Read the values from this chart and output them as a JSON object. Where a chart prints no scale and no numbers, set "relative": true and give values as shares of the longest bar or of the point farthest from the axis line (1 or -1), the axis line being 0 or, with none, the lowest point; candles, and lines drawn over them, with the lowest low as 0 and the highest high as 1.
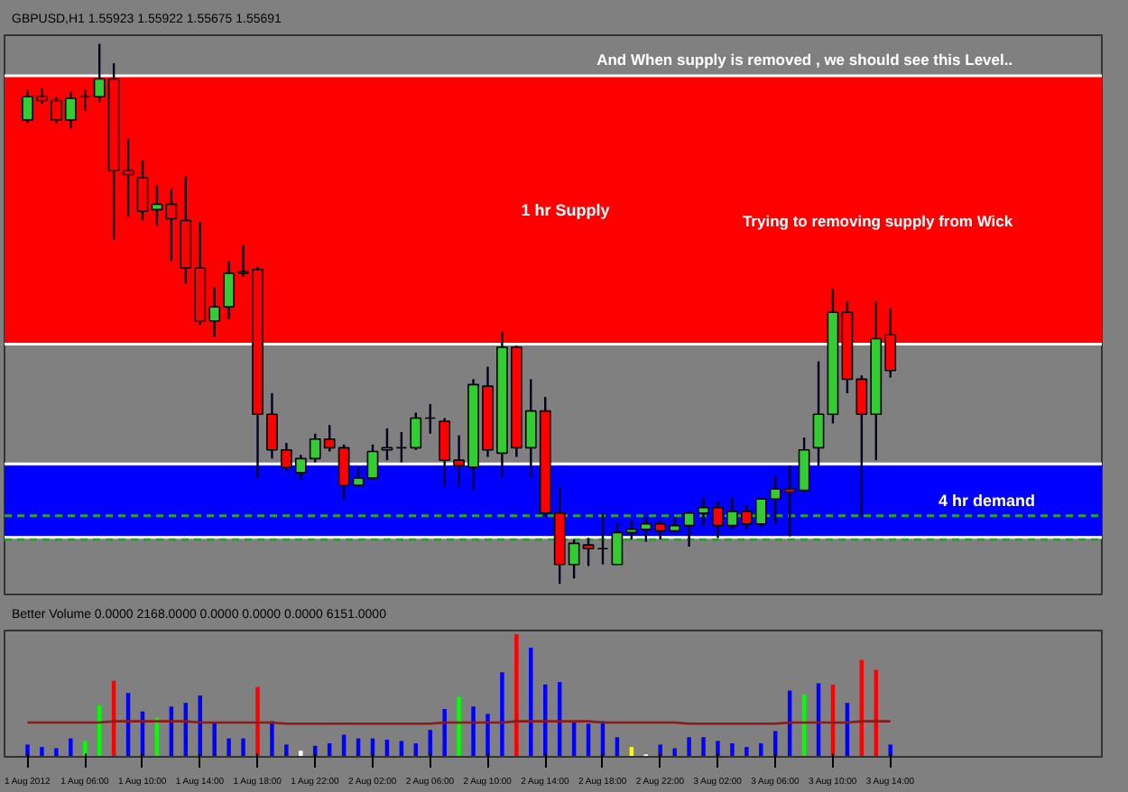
{
  "chart_data": [
    {
      "type": "candlestick",
      "title": "GBPUSD,H1 1.55923 1.55922 1.55675 1.55691",
      "relative": true,
      "tick_labels": false,
      "categories": [
        null,
        null,
        null,
        null,
        null,
        null,
        null,
        null,
        null,
        null,
        null,
        null,
        null,
        null,
        null,
        null,
        null,
        null,
        null,
        null,
        null,
        null,
        null,
        null,
        null,
        null,
        null,
        null,
        null,
        null,
        null,
        null,
        null,
        null,
        null,
        null,
        null,
        null,
        null,
        null,
        null,
        null,
        null,
        null,
        null,
        null,
        null,
        null,
        null,
        null,
        null,
        null,
        null,
        null,
        null,
        null,
        null,
        null,
        null,
        null,
        null
      ],
      "ohlc": [
        [
          0.859,
          0.915,
          0.853,
          0.902
        ],
        [
          0.902,
          0.918,
          0.889,
          0.895
        ],
        [
          0.895,
          0.902,
          0.853,
          0.859
        ],
        [
          0.859,
          0.912,
          0.843,
          0.899
        ],
        [
          0.902,
          0.915,
          0.876,
          0.902
        ],
        [
          0.902,
          1.0,
          0.892,
          0.935
        ],
        [
          0.935,
          0.964,
          0.637,
          0.765
        ],
        [
          0.765,
          0.824,
          0.68,
          0.758
        ],
        [
          0.752,
          0.784,
          0.673,
          0.69
        ],
        [
          0.693,
          0.739,
          0.663,
          0.703
        ],
        [
          0.703,
          0.732,
          0.598,
          0.676
        ],
        [
          0.673,
          0.755,
          0.556,
          0.585
        ],
        [
          0.585,
          0.67,
          0.48,
          0.487
        ],
        [
          0.487,
          0.549,
          0.458,
          0.513
        ],
        [
          0.513,
          0.598,
          0.49,
          0.575
        ],
        [
          0.575,
          0.627,
          0.569,
          0.578
        ],
        [
          0.582,
          0.588,
          0.196,
          0.314
        ],
        [
          0.314,
          0.353,
          0.232,
          0.248
        ],
        [
          0.248,
          0.261,
          0.209,
          0.216
        ],
        [
          0.206,
          0.239,
          0.193,
          0.232
        ],
        [
          0.232,
          0.278,
          0.225,
          0.268
        ],
        [
          0.268,
          0.294,
          0.245,
          0.252
        ],
        [
          0.252,
          0.258,
          0.157,
          0.183
        ],
        [
          0.183,
          0.216,
          0.18,
          0.196
        ],
        [
          0.196,
          0.258,
          0.193,
          0.245
        ],
        [
          0.248,
          0.288,
          0.229,
          0.252
        ],
        [
          0.252,
          0.281,
          0.225,
          0.252
        ],
        [
          0.252,
          0.317,
          0.248,
          0.307
        ],
        [
          0.307,
          0.333,
          0.278,
          0.307
        ],
        [
          0.301,
          0.307,
          0.18,
          0.229
        ],
        [
          0.229,
          0.275,
          0.18,
          0.219
        ],
        [
          0.216,
          0.379,
          0.173,
          0.369
        ],
        [
          0.366,
          0.402,
          0.235,
          0.248
        ],
        [
          0.242,
          0.467,
          0.196,
          0.438
        ],
        [
          0.438,
          0.441,
          0.235,
          0.252
        ],
        [
          0.252,
          0.379,
          0.196,
          0.32
        ],
        [
          0.32,
          0.346,
          0.124,
          0.131
        ],
        [
          0.131,
          0.18,
          0.0,
          0.036
        ],
        [
          0.036,
          0.082,
          0.01,
          0.075
        ],
        [
          0.072,
          0.085,
          0.033,
          0.065
        ],
        [
          0.065,
          0.131,
          0.036,
          0.065
        ],
        [
          0.036,
          0.114,
          0.036,
          0.095
        ],
        [
          0.095,
          0.118,
          0.082,
          0.101
        ],
        [
          0.101,
          0.124,
          0.078,
          0.111
        ],
        [
          0.111,
          0.118,
          0.082,
          0.098
        ],
        [
          0.098,
          0.124,
          0.095,
          0.108
        ],
        [
          0.108,
          0.134,
          0.069,
          0.131
        ],
        [
          0.131,
          0.16,
          0.108,
          0.141
        ],
        [
          0.141,
          0.154,
          0.085,
          0.108
        ],
        [
          0.108,
          0.16,
          0.101,
          0.134
        ],
        [
          0.134,
          0.147,
          0.101,
          0.111
        ],
        [
          0.111,
          0.16,
          0.105,
          0.157
        ],
        [
          0.157,
          0.199,
          0.111,
          0.176
        ],
        [
          0.176,
          0.219,
          0.088,
          0.17
        ],
        [
          0.173,
          0.271,
          0.17,
          0.248
        ],
        [
          0.252,
          0.412,
          0.219,
          0.314
        ],
        [
          0.314,
          0.546,
          0.297,
          0.503
        ],
        [
          0.503,
          0.523,
          0.353,
          0.379
        ],
        [
          0.379,
          0.386,
          0.124,
          0.314
        ],
        [
          0.314,
          0.523,
          0.229,
          0.454
        ],
        [
          0.461,
          0.51,
          0.382,
          0.395
        ]
      ],
      "colors": [
        "#33cc33",
        "#ff0000",
        "#ff0000",
        "#33cc33",
        "#000000",
        "#33cc33",
        "#ff0000",
        "#ff0000",
        "#ff0000",
        "#33cc33",
        "#ff0000",
        "#ff0000",
        "#ff0000",
        "#33cc33",
        "#33cc33",
        "#33cc33",
        "#ff0000",
        "#ff0000",
        "#ff0000",
        "#33cc33",
        "#33cc33",
        "#ff0000",
        "#ff0000",
        "#33cc33",
        "#33cc33",
        "#33cc33",
        "#000000",
        "#33cc33",
        "#000000",
        "#ff0000",
        "#ff0000",
        "#33cc33",
        "#ff0000",
        "#33cc33",
        "#ff0000",
        "#33cc33",
        "#ff0000",
        "#ff0000",
        "#33cc33",
        "#ff0000",
        "#000000",
        "#33cc33",
        "#33cc33",
        "#33cc33",
        "#ff0000",
        "#33cc33",
        "#33cc33",
        "#33cc33",
        "#ff0000",
        "#33cc33",
        "#ff0000",
        "#33cc33",
        "#33cc33",
        "#ff0000",
        "#33cc33",
        "#33cc33",
        "#33cc33",
        "#ff0000",
        "#ff0000",
        "#33cc33",
        "#ff0000"
      ],
      "bands": [
        {
          "axis": "y",
          "from": 0.444,
          "to": 0.941,
          "label": "1 hr Supply",
          "color": "#ff0000"
        },
        {
          "axis": "y",
          "from": 0.088,
          "to": 0.219,
          "label": "4 hr demand",
          "color": "#0000ff"
        }
      ],
      "ref_lines": [
        {
          "axis": "y",
          "value": 0.941,
          "color": "#ffffff",
          "line_style": "solid"
        },
        {
          "axis": "y",
          "value": 0.444,
          "color": "#ffffff",
          "line_style": "solid"
        },
        {
          "axis": "y",
          "value": 0.222,
          "color": "#ffffff",
          "line_style": "solid"
        },
        {
          "axis": "y",
          "value": 0.086,
          "color": "#ffffff",
          "line_style": "solid"
        },
        {
          "axis": "y",
          "value": 0.126,
          "color": "#22aa22",
          "line_style": "dashed"
        },
        {
          "axis": "y",
          "value": 0.082,
          "color": "#22aa22",
          "line_style": "dashed"
        }
      ],
      "annotations": [
        "And When supply is removed , we should see this Level..",
        "Trying to removing supply from Wick"
      ]
    },
    {
      "type": "bar",
      "title": "Better Volume 0.0000 2168.0000 0.0000 0.0000 0.0000 6151.0000",
      "relative": true,
      "tick_labels": "x",
      "categories": [
        "1 Aug 2012",
        null,
        null,
        null,
        "1 Aug 06:00",
        null,
        null,
        null,
        "1 Aug 10:00",
        null,
        null,
        null,
        "1 Aug 14:00",
        null,
        null,
        null,
        "1 Aug 18:00",
        null,
        null,
        null,
        "1 Aug 22:00",
        null,
        null,
        null,
        "2 Aug 02:00",
        null,
        null,
        null,
        "2 Aug 06:00",
        null,
        null,
        null,
        "2 Aug 10:00",
        null,
        null,
        null,
        "2 Aug 14:00",
        null,
        null,
        null,
        "2 Aug 18:00",
        null,
        null,
        null,
        "2 Aug 22:00",
        null,
        null,
        null,
        "3 Aug 02:00",
        null,
        null,
        null,
        "3 Aug 06:00",
        null,
        null,
        null,
        "3 Aug 10:00",
        null,
        null,
        null,
        "3 Aug 14:00"
      ],
      "series": [
        {
          "type": "bar",
          "colors": [
            "#0000ff",
            "#0000ff",
            "#0000ff",
            "#0000ff",
            "#00ff00",
            "#00ff00",
            "#ff0000",
            "#0000ff",
            "#0000ff",
            "#00ff00",
            "#0000ff",
            "#0000ff",
            "#0000ff",
            "#0000ff",
            "#0000ff",
            "#0000ff",
            "#ff0000",
            "#0000ff",
            "#0000ff",
            "#ffffff",
            "#0000ff",
            "#0000ff",
            "#0000ff",
            "#0000ff",
            "#0000ff",
            "#0000ff",
            "#0000ff",
            "#0000ff",
            "#0000ff",
            "#0000ff",
            "#00ff00",
            "#0000ff",
            "#0000ff",
            "#0000ff",
            "#ff0000",
            "#0000ff",
            "#0000ff",
            "#0000ff",
            "#0000ff",
            "#0000ff",
            "#0000ff",
            "#0000ff",
            "#ffff00",
            "#ffffff",
            "#0000ff",
            "#0000ff",
            "#0000ff",
            "#0000ff",
            "#0000ff",
            "#0000ff",
            "#0000ff",
            "#0000ff",
            "#0000ff",
            "#0000ff",
            "#00ff00",
            "#0000ff",
            "#ff0000",
            "#0000ff",
            "#ff0000",
            "#ff0000",
            "#0000ff"
          ],
          "values": [
            0.1,
            0.08,
            0.07,
            0.15,
            0.13,
            0.42,
            0.62,
            0.52,
            0.37,
            0.32,
            0.41,
            0.44,
            0.5,
            0.28,
            0.15,
            0.15,
            0.57,
            0.29,
            0.1,
            0.05,
            0.09,
            0.11,
            0.18,
            0.15,
            0.15,
            0.14,
            0.13,
            0.11,
            0.22,
            0.39,
            0.49,
            0.41,
            0.35,
            0.69,
            1.0,
            0.89,
            0.59,
            0.61,
            0.28,
            0.27,
            0.29,
            0.16,
            0.08,
            0.02,
            0.1,
            0.07,
            0.16,
            0.16,
            0.13,
            0.11,
            0.08,
            0.11,
            0.21,
            0.54,
            0.51,
            0.6,
            0.59,
            0.44,
            0.79,
            0.71,
            0.1
          ]
        },
        {
          "type": "line",
          "color": "#8b1a1a",
          "values": [
            0.28,
            0.28,
            0.28,
            0.28,
            0.28,
            0.28,
            0.29,
            0.29,
            0.29,
            0.29,
            0.29,
            0.29,
            0.28,
            0.28,
            0.28,
            0.28,
            0.28,
            0.28,
            0.27,
            0.27,
            0.27,
            0.27,
            0.27,
            0.27,
            0.27,
            0.27,
            0.27,
            0.27,
            0.27,
            0.28,
            0.28,
            0.28,
            0.28,
            0.28,
            0.29,
            0.29,
            0.29,
            0.29,
            0.29,
            0.29,
            0.28,
            0.28,
            0.28,
            0.28,
            0.28,
            0.28,
            0.27,
            0.27,
            0.27,
            0.27,
            0.27,
            0.27,
            0.27,
            0.28,
            0.28,
            0.28,
            0.28,
            0.28,
            0.29,
            0.29,
            0.29
          ]
        }
      ]
    }
  ]
}
